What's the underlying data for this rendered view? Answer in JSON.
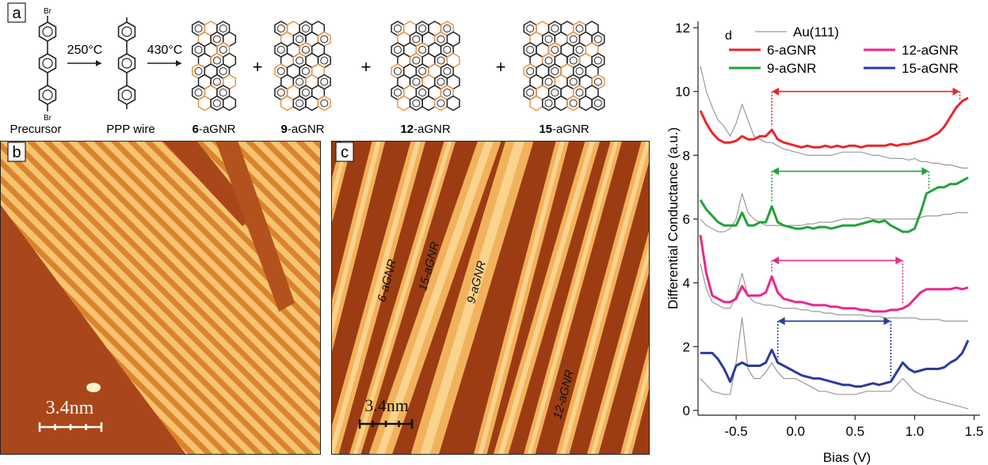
{
  "panel_a": {
    "label": "a",
    "br": "Br",
    "arrow1": "250°C",
    "arrow2": "430°C",
    "plus": "+",
    "molecules": [
      {
        "name": "Precursor"
      },
      {
        "name": "PPP wire"
      },
      {
        "number": "6",
        "suffix": "-aGNR"
      },
      {
        "number": "9",
        "suffix": "-aGNR"
      },
      {
        "number": "12",
        "suffix": "-aGNR"
      },
      {
        "number": "15",
        "suffix": "-aGNR"
      }
    ]
  },
  "panel_b": {
    "label": "b",
    "scale_bar": "3.4nm"
  },
  "panel_c": {
    "label": "c",
    "scale_bar": "3.4nm",
    "ribbon_labels": [
      "6-aGNR",
      "15-aGNR",
      "9-aGNR",
      "12-aGNR"
    ]
  },
  "chart_data": {
    "type": "line",
    "panel_label": "d",
    "x_label": "Bias (V)",
    "y_label": "Differential Conductance (a.u.)",
    "xlim": [
      -0.82,
      1.55
    ],
    "ylim": [
      -0.15,
      12.2
    ],
    "xticks": [
      {
        "value": -0.5,
        "label": "-0.5"
      },
      {
        "value": 0,
        "label": "0.0"
      },
      {
        "value": 0.5,
        "label": "0.5"
      },
      {
        "value": 1,
        "label": "1.0"
      },
      {
        "value": 1.5,
        "label": "1.5"
      }
    ],
    "yticks": [
      0,
      2,
      4,
      6,
      8,
      10,
      12
    ],
    "x": [
      -0.8,
      -0.75,
      -0.7,
      -0.65,
      -0.6,
      -0.55,
      -0.5,
      -0.45,
      -0.4,
      -0.35,
      -0.3,
      -0.25,
      -0.2,
      -0.15,
      -0.1,
      -0.05,
      0,
      0.05,
      0.1,
      0.15,
      0.2,
      0.25,
      0.3,
      0.35,
      0.4,
      0.45,
      0.5,
      0.55,
      0.6,
      0.65,
      0.7,
      0.75,
      0.8,
      0.85,
      0.9,
      0.95,
      1.0,
      1.05,
      1.1,
      1.15,
      1.2,
      1.25,
      1.3,
      1.35,
      1.4,
      1.45
    ],
    "series": [
      {
        "name": "Au(111)",
        "color": "#999999",
        "values": [
          10.8,
          10.0,
          9.5,
          9.1,
          8.9,
          8.6,
          9.0,
          9.6,
          9.1,
          8.6,
          8.5,
          8.4,
          8.4,
          8.3,
          8.2,
          8.15,
          8.1,
          8.05,
          8.0,
          8.0,
          8.0,
          8.0,
          8.0,
          8.05,
          8.1,
          8.1,
          8.1,
          8.1,
          8.05,
          8.0,
          8.0,
          7.95,
          7.9,
          7.9,
          7.9,
          7.85,
          7.9,
          7.8,
          7.8,
          7.75,
          7.75,
          7.7,
          7.7,
          7.65,
          7.6,
          7.6
        ]
      },
      {
        "name": "6-aGNR",
        "color": "#e8262a",
        "gap": [
          -0.2,
          1.38
        ],
        "gap_y": 10.0,
        "values": [
          9.4,
          9.0,
          8.7,
          8.5,
          8.4,
          8.4,
          8.45,
          8.6,
          8.5,
          8.5,
          8.6,
          8.6,
          8.8,
          8.5,
          8.4,
          8.35,
          8.3,
          8.25,
          8.3,
          8.25,
          8.25,
          8.3,
          8.25,
          8.3,
          8.25,
          8.3,
          8.3,
          8.25,
          8.3,
          8.3,
          8.3,
          8.3,
          8.35,
          8.3,
          8.35,
          8.35,
          8.4,
          8.45,
          8.5,
          8.6,
          8.7,
          8.9,
          9.2,
          9.5,
          9.7,
          9.8
        ]
      },
      {
        "name": "9-aGNR",
        "color": "#1fa33a",
        "gap": [
          -0.2,
          1.12
        ],
        "gap_y": 7.5,
        "values": [
          6.6,
          6.3,
          6.1,
          5.9,
          5.8,
          5.8,
          5.8,
          6.2,
          5.8,
          5.8,
          5.9,
          5.9,
          6.4,
          5.9,
          5.8,
          5.75,
          5.7,
          5.7,
          5.75,
          5.7,
          5.75,
          5.75,
          5.7,
          5.75,
          5.8,
          5.8,
          5.8,
          5.85,
          5.9,
          5.95,
          5.9,
          5.95,
          5.8,
          5.7,
          5.6,
          5.6,
          5.7,
          6.2,
          6.8,
          6.9,
          7.0,
          7.0,
          7.1,
          7.1,
          7.2,
          7.3
        ]
      },
      {
        "name": "12-aGNR",
        "color": "#e8288c",
        "gap": [
          -0.2,
          0.9
        ],
        "gap_y": 4.7,
        "values": [
          5.5,
          4.3,
          3.6,
          3.5,
          3.4,
          3.4,
          3.5,
          3.9,
          3.6,
          3.6,
          3.6,
          3.7,
          4.2,
          3.7,
          3.5,
          3.45,
          3.4,
          3.4,
          3.35,
          3.3,
          3.3,
          3.3,
          3.25,
          3.25,
          3.2,
          3.2,
          3.2,
          3.15,
          3.15,
          3.1,
          3.1,
          3.1,
          3.15,
          3.15,
          3.2,
          3.3,
          3.5,
          3.7,
          3.8,
          3.8,
          3.8,
          3.8,
          3.8,
          3.85,
          3.8,
          3.85
        ]
      },
      {
        "name": "15-aGNR",
        "color": "#2a3c9c",
        "gap": [
          -0.15,
          0.8
        ],
        "gap_y": 2.8,
        "values": [
          1.8,
          1.8,
          1.8,
          1.6,
          1.3,
          0.9,
          1.4,
          1.5,
          1.4,
          1.4,
          1.4,
          1.5,
          1.9,
          1.5,
          1.4,
          1.3,
          1.2,
          1.1,
          1.05,
          1.0,
          1.0,
          0.95,
          0.9,
          0.85,
          0.8,
          0.8,
          0.75,
          0.75,
          0.8,
          0.85,
          0.8,
          0.85,
          0.9,
          1.2,
          1.5,
          1.3,
          1.2,
          1.25,
          1.3,
          1.3,
          1.3,
          1.35,
          1.5,
          1.6,
          1.8,
          2.2
        ]
      },
      {
        "color": "#999999",
        "values": [
          6.0,
          5.8,
          5.7,
          5.6,
          5.6,
          5.7,
          6.0,
          6.8,
          6.2,
          6.0,
          5.9,
          5.8,
          5.8,
          5.8,
          5.8,
          5.8,
          5.8,
          5.8,
          5.85,
          5.85,
          5.9,
          5.9,
          5.9,
          5.95,
          6.0,
          6.0,
          6.0,
          6.0,
          6.05,
          6.0,
          6.0,
          6.0,
          6.0,
          6.0,
          6.0,
          6.0,
          6.0,
          6.05,
          6.1,
          6.1,
          6.1,
          6.15,
          6.15,
          6.2,
          6.2,
          6.2
        ]
      },
      {
        "color": "#999999",
        "values": [
          4.6,
          3.8,
          3.4,
          3.3,
          3.2,
          3.2,
          3.6,
          4.3,
          3.6,
          3.4,
          3.35,
          3.3,
          3.3,
          3.25,
          3.2,
          3.2,
          3.2,
          3.15,
          3.15,
          3.1,
          3.1,
          3.05,
          3.05,
          3.0,
          3.0,
          3.0,
          3.0,
          3.0,
          2.95,
          2.95,
          2.95,
          2.9,
          2.9,
          2.9,
          2.9,
          2.9,
          2.9,
          2.85,
          2.85,
          2.85,
          2.85,
          2.8,
          2.8,
          2.8,
          2.8,
          2.8
        ]
      },
      {
        "color": "#999999",
        "values": [
          1.0,
          0.8,
          0.6,
          0.55,
          0.5,
          0.5,
          1.5,
          2.9,
          1.3,
          1.0,
          1.0,
          1.2,
          1.5,
          1.2,
          1.0,
          1.0,
          1.0,
          0.9,
          0.8,
          0.7,
          0.6,
          0.6,
          0.55,
          0.5,
          0.5,
          0.5,
          0.5,
          0.55,
          0.6,
          0.6,
          0.6,
          0.6,
          0.6,
          0.8,
          1.0,
          0.8,
          0.6,
          0.5,
          0.4,
          0.35,
          0.3,
          0.25,
          0.2,
          0.15,
          0.1,
          0.05
        ]
      }
    ]
  }
}
